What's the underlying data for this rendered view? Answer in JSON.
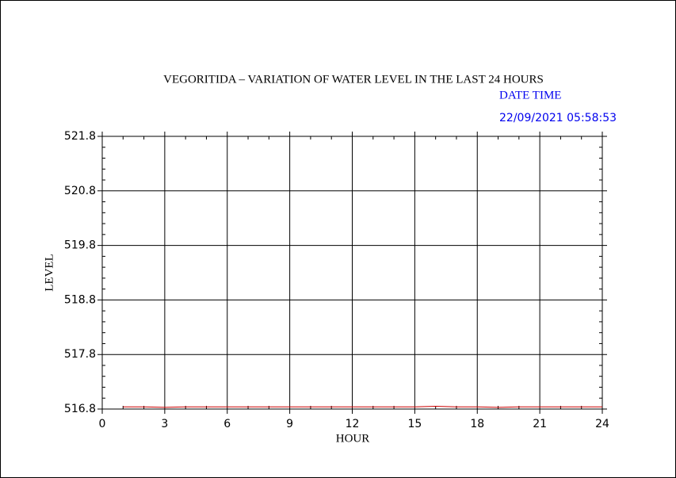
{
  "chart_data": {
    "type": "line",
    "title": "VEGORITIDA – VARIATION OF WATER LEVEL IN THE LAST 24 HOURS",
    "date_label": "DATE TIME",
    "timestamp": "22/09/2021 05:58:53",
    "x_label": "HOUR",
    "y_label": "LEVEL",
    "x": [
      1,
      2,
      3,
      4,
      5,
      6,
      7,
      8,
      9,
      10,
      11,
      12,
      13,
      14,
      15,
      16,
      17,
      18,
      19,
      20,
      21,
      22,
      23,
      24
    ],
    "series": [
      {
        "color": "#cc0000",
        "values": [
          516.84,
          516.84,
          516.83,
          516.84,
          516.84,
          516.84,
          516.84,
          516.84,
          516.84,
          516.84,
          516.84,
          516.84,
          516.84,
          516.84,
          516.84,
          516.85,
          516.84,
          516.84,
          516.83,
          516.84,
          516.84,
          516.84,
          516.84,
          516.84
        ]
      }
    ],
    "xlim": [
      0,
      24
    ],
    "xticks": [
      0,
      3,
      6,
      9,
      12,
      15,
      18,
      21,
      24
    ],
    "ylim": [
      516.8,
      521.8
    ],
    "yticks": [
      521.8,
      520.8,
      519.8,
      518.8,
      517.8,
      516.8
    ],
    "grid": true
  }
}
